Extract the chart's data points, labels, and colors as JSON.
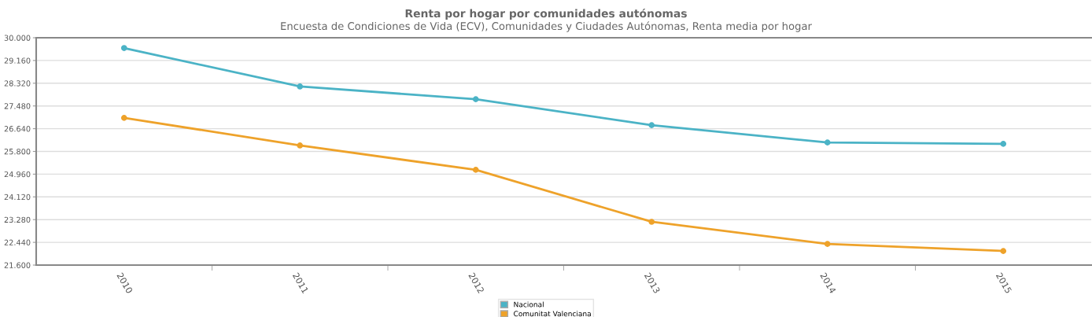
{
  "chart_data": {
    "type": "line",
    "title": "Renta por hogar por comunidades autónomas",
    "subtitle": "Encuesta de Condiciones de Vida (ECV), Comunidades y Ciudades Autónomas, Renta media por hogar",
    "categories": [
      "2010",
      "2011",
      "2012",
      "2013",
      "2014",
      "2015"
    ],
    "series": [
      {
        "name": "Nacional",
        "color": "#4bb3c6",
        "values": [
          29620,
          28200,
          27730,
          26770,
          26130,
          26080
        ]
      },
      {
        "name": "Comunitat Valenciana",
        "color": "#eea22a",
        "values": [
          27040,
          26020,
          25120,
          23200,
          22380,
          22120
        ]
      }
    ],
    "ylim": [
      21600,
      30000
    ],
    "yticks": [
      {
        "value": 21600,
        "label": "21.600"
      },
      {
        "value": 22440,
        "label": "22.440"
      },
      {
        "value": 23280,
        "label": "23.280"
      },
      {
        "value": 24120,
        "label": "24.120"
      },
      {
        "value": 24960,
        "label": "24.960"
      },
      {
        "value": 25800,
        "label": "25.800"
      },
      {
        "value": 26640,
        "label": "26.640"
      },
      {
        "value": 27480,
        "label": "27.480"
      },
      {
        "value": 28320,
        "label": "28.320"
      },
      {
        "value": 29160,
        "label": "29.160"
      },
      {
        "value": 30000,
        "label": "30.000"
      }
    ],
    "grid": "y",
    "legend": "bottom",
    "marker": "circle",
    "line_style": "solid"
  }
}
